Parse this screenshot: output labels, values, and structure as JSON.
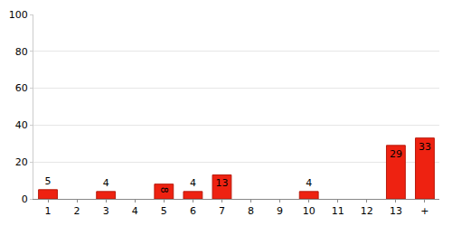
{
  "chart_data": {
    "type": "bar",
    "categories": [
      "1",
      "2",
      "3",
      "4",
      "5",
      "6",
      "7",
      "8",
      "9",
      "10",
      "11",
      "12",
      "13",
      "+"
    ],
    "values": [
      5,
      null,
      4,
      null,
      8,
      4,
      13,
      null,
      null,
      4,
      null,
      null,
      29,
      33
    ],
    "color": "#ee2211",
    "ylim": [
      0,
      100
    ],
    "yticks": [
      0,
      20,
      40,
      60,
      80,
      100
    ],
    "grid": true,
    "data_labels": true
  }
}
